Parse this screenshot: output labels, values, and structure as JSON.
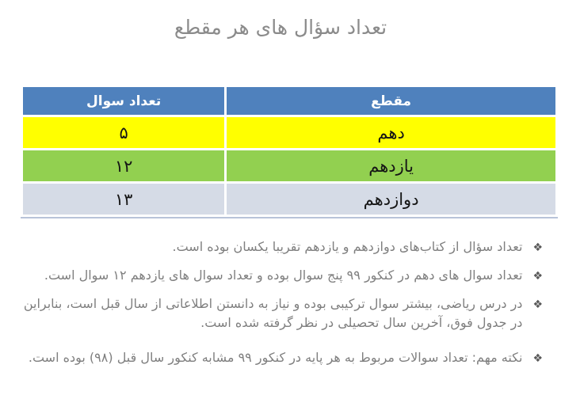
{
  "page": {
    "title": "تعداد سؤال های هر مقطع"
  },
  "table": {
    "header_bg": "#4f81bd",
    "header_text_color": "#ffffff",
    "bottom_border_color": "#b8c3d9",
    "headers": {
      "grade": "مقطع",
      "count": "تعداد سوال"
    },
    "rows": [
      {
        "grade": "دهم",
        "count": "۵",
        "bg": "#ffff00"
      },
      {
        "grade": "یازدهم",
        "count": "۱۲",
        "bg": "#92d050"
      },
      {
        "grade": "دوازدهم",
        "count": "۱۳",
        "bg": "#d5dbe6"
      }
    ]
  },
  "notes": {
    "bullet_glyph": "❖",
    "items": [
      "تعداد سؤال از کتاب‌های دوازدهم و یازدهم تقریبا یکسان بوده است.",
      "تعداد سوال های دهم در کنکور ۹۹ پنج سوال بوده و تعداد سوال های یازدهم ۱۲ سوال است.",
      "در درس ریاضی، بیشتر سوال ترکیبی بوده و نیاز به دانستن اطلاعاتی از سال قبل است، بنابراین در جدول فوق، آخرین سال تحصیلی در نظر گرفته شده است.",
      "نکته مهم: تعداد سوالات مربوط به هر پایه در کنکور ۹۹ مشابه کنکور سال قبل (۹۸) بوده است."
    ]
  },
  "colors": {
    "title_text": "#8b8b8b",
    "note_text": "#7f7f7f",
    "bullet": "#595959"
  }
}
